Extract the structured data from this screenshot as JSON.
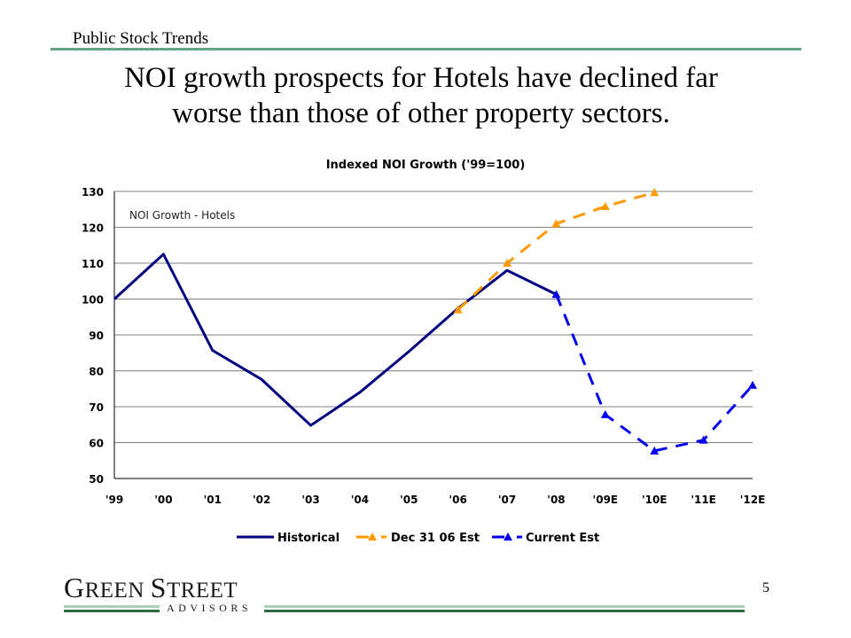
{
  "header": {
    "section_title": "Public Stock Trends",
    "headline_line1": "NOI growth prospects for Hotels have declined far",
    "headline_line2": "worse than those of other property sectors."
  },
  "chart_data": {
    "type": "line",
    "title": "Indexed NOI Growth ('99=100)",
    "annotation": "NOI Growth - Hotels",
    "xlabel": "",
    "ylabel": "",
    "categories": [
      "'99",
      "'00",
      "'01",
      "'02",
      "'03",
      "'04",
      "'05",
      "'06",
      "'07",
      "'08",
      "'09E",
      "'10E",
      "'11E",
      "'12E"
    ],
    "ylim": [
      50,
      130
    ],
    "yticks": [
      50,
      60,
      70,
      80,
      90,
      100,
      110,
      120,
      130
    ],
    "grid": true,
    "legend_position": "bottom",
    "series": [
      {
        "name": "Historical",
        "color": "#000080",
        "style": "solid",
        "marker": "none",
        "values": [
          100,
          112.5,
          85.7,
          77.6,
          64.8,
          74,
          85.4,
          97.4,
          108,
          101.3,
          null,
          null,
          null,
          null
        ]
      },
      {
        "name": "Dec 31 06 Est",
        "color": "#ff9900",
        "style": "dashed",
        "marker": "triangle",
        "values": [
          null,
          null,
          null,
          null,
          null,
          null,
          null,
          97,
          110,
          121,
          125.8,
          129.7,
          null,
          null
        ]
      },
      {
        "name": "Current Est",
        "color": "#0000ee",
        "style": "dashed",
        "marker": "triangle",
        "values": [
          null,
          null,
          null,
          null,
          null,
          null,
          null,
          null,
          null,
          101.3,
          67.8,
          57.7,
          60.7,
          76
        ]
      }
    ]
  },
  "footer": {
    "logo_line1_cap1": "G",
    "logo_line1_rest1": "REEN ",
    "logo_line1_cap2": "S",
    "logo_line1_rest2": "TREET",
    "logo_line2": "ADVISORS",
    "page_number": "5"
  }
}
